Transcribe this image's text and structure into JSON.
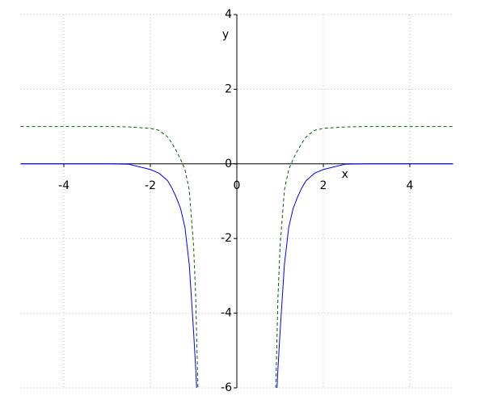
{
  "chart_data": {
    "type": "line",
    "xlabel": "x",
    "ylabel": "y",
    "x": [
      -5,
      -4,
      -3,
      -2.5,
      -2,
      -1.8,
      -1.6,
      -1.5,
      -1.4,
      -1.3,
      -1.2,
      -1.1,
      -1,
      -0.95,
      -0.93,
      -0.9,
      0,
      0.9,
      0.93,
      0.95,
      1,
      1.1,
      1.2,
      1.3,
      1.4,
      1.5,
      1.6,
      1.8,
      2,
      2.5,
      3,
      4,
      5
    ],
    "series": [
      {
        "color": "#0000ff",
        "dash": false,
        "values": [
          0,
          0,
          0,
          -0.01,
          -0.15,
          -0.25,
          -0.45,
          -0.65,
          -0.9,
          -1.2,
          -1.7,
          -2.7,
          -4.5,
          -5.5,
          -6,
          null,
          null,
          null,
          -6,
          -5.5,
          -4.5,
          -2.7,
          -1.7,
          -1.2,
          -0.9,
          -0.65,
          -0.45,
          -0.25,
          -0.15,
          -0.01,
          0,
          0,
          0
        ]
      },
      {
        "color": "#006400",
        "dash": true,
        "values": [
          1,
          1,
          1,
          0.99,
          0.95,
          0.9,
          0.72,
          0.55,
          0.35,
          0.12,
          -0.15,
          -0.7,
          -2.2,
          -3.6,
          -4.6,
          -6,
          null,
          -6,
          -4.6,
          -3.6,
          -2.2,
          -0.7,
          -0.15,
          0.12,
          0.35,
          0.55,
          0.72,
          0.9,
          0.95,
          0.99,
          1,
          1,
          1
        ]
      }
    ],
    "xlim": [
      -5,
      5
    ],
    "ylim": [
      -6,
      4
    ],
    "xticks": [
      -4,
      -2,
      0,
      2,
      4
    ],
    "yticks": [
      -6,
      -4,
      -2,
      0,
      2,
      4
    ],
    "grid": true
  }
}
